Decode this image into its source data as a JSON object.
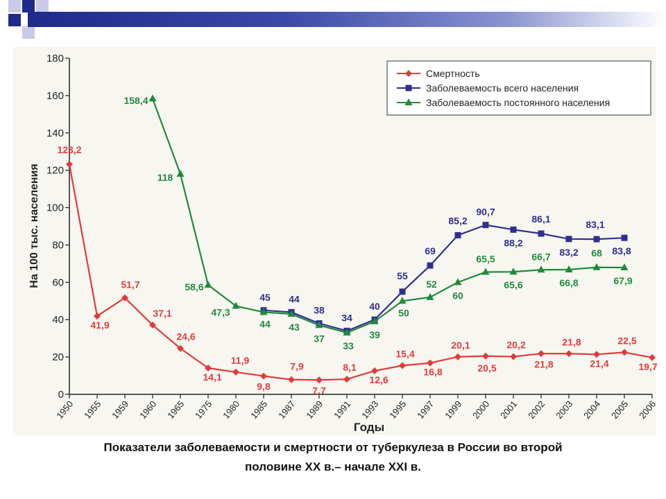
{
  "colors": {
    "mortality": "#e23a3a",
    "total": "#2f2f8f",
    "permanent": "#1f8a3a",
    "axis": "#222222",
    "header_dark": "#1f2a8c",
    "header_light": "#c9cbe6"
  },
  "caption": {
    "line1": "Показатели заболеваемости и смертности от туберкулеза в России во второй",
    "line2": "половине XX в.– начале XXI в."
  },
  "chart_data": {
    "type": "line",
    "xlabel": "Годы",
    "ylabel": "На 100 тыс. населения",
    "ylim": [
      0,
      180
    ],
    "yticks": [
      0,
      20,
      40,
      60,
      80,
      100,
      120,
      140,
      160,
      180
    ],
    "grid": false,
    "legend_position": "top-right",
    "categories": [
      "1950",
      "1955",
      "1959",
      "1960",
      "1965",
      "1975",
      "1980",
      "1985",
      "1987",
      "1989",
      "1991",
      "1993",
      "1995",
      "1997",
      "1999",
      "2000",
      "2001",
      "2002",
      "2003",
      "2004",
      "2005",
      "2006"
    ],
    "series": [
      {
        "name": "Смертность",
        "color": "#e23a3a",
        "marker": "diamond",
        "values": [
          123.2,
          41.9,
          51.7,
          37.1,
          24.6,
          14.1,
          11.9,
          9.8,
          7.9,
          7.7,
          8.1,
          12.6,
          15.4,
          16.8,
          20.1,
          20.5,
          20.2,
          21.8,
          21.8,
          21.4,
          22.5,
          19.7
        ],
        "labels": [
          "123,2",
          "41,9",
          "51,7",
          "37,1",
          "24,6",
          "14,1",
          "11,9",
          "9,8",
          "7,9",
          "7,7",
          "8,1",
          "12,6",
          "15,4",
          "16,8",
          "20,1",
          "20,5",
          "20,2",
          "21,8",
          "21,8",
          "21,4",
          "22,5",
          "19,7"
        ]
      },
      {
        "name": "Заболеваемость всего населения",
        "color": "#2f2f8f",
        "marker": "square",
        "values": [
          null,
          null,
          null,
          null,
          null,
          null,
          null,
          45,
          44,
          38,
          34,
          40,
          55,
          69,
          85.2,
          90.7,
          88.2,
          86.1,
          83.2,
          83.1,
          83.8,
          null
        ],
        "labels": [
          null,
          null,
          null,
          null,
          null,
          null,
          null,
          "45",
          "44",
          "38",
          "34",
          "40",
          "55",
          "69",
          "85,2",
          "90,7",
          "88,2",
          "86,1",
          "83,2",
          "83,1",
          "83,8",
          null
        ]
      },
      {
        "name": "Заболеваемость постоянного населения",
        "color": "#1f8a3a",
        "marker": "triangle",
        "values": [
          null,
          null,
          null,
          158.4,
          118,
          58.6,
          47.3,
          44,
          43,
          37,
          33,
          39,
          50,
          52,
          60,
          65.5,
          65.6,
          66.7,
          66.8,
          68,
          67.9,
          null
        ],
        "labels": [
          null,
          null,
          null,
          "158,4",
          "118",
          "58,6",
          "47,3",
          "44",
          "43",
          "37",
          "33",
          "39",
          "50",
          "52",
          "60",
          "65,5",
          "65,6",
          "66,7",
          "66,8",
          "68",
          "67,9",
          null
        ]
      }
    ]
  }
}
